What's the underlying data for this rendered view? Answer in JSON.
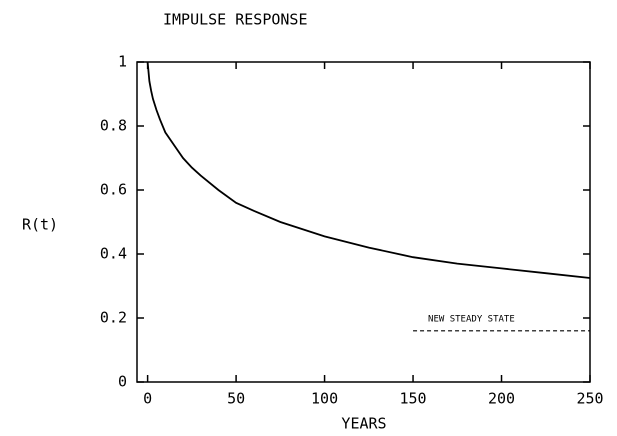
{
  "chart_data": {
    "type": "line",
    "title": "IMPULSE RESPONSE",
    "x_label": "YEARS",
    "y_label": "R(t)",
    "xlim": [
      -6,
      250
    ],
    "ylim": [
      0,
      1
    ],
    "xticks": [
      0,
      50,
      100,
      150,
      200,
      250
    ],
    "yticks": [
      0,
      0.2,
      0.4,
      0.6,
      0.8,
      1
    ],
    "series": [
      {
        "name": null,
        "color": "#000000",
        "linestyle": "solid",
        "x": [
          0,
          1,
          2,
          3,
          5,
          7,
          10,
          15,
          20,
          25,
          30,
          40,
          50,
          60,
          75,
          100,
          125,
          150,
          175,
          200,
          225,
          250
        ],
        "values": [
          1,
          0.94,
          0.91,
          0.885,
          0.85,
          0.82,
          0.78,
          0.74,
          0.7,
          0.67,
          0.645,
          0.6,
          0.56,
          0.535,
          0.5,
          0.455,
          0.42,
          0.39,
          0.37,
          0.355,
          0.34,
          0.325
        ]
      },
      {
        "name": "NEW STEADY STATE",
        "color": "#000000",
        "linestyle": "dashed",
        "x": [
          150,
          250
        ],
        "values": [
          0.16,
          0.16
        ]
      }
    ]
  }
}
